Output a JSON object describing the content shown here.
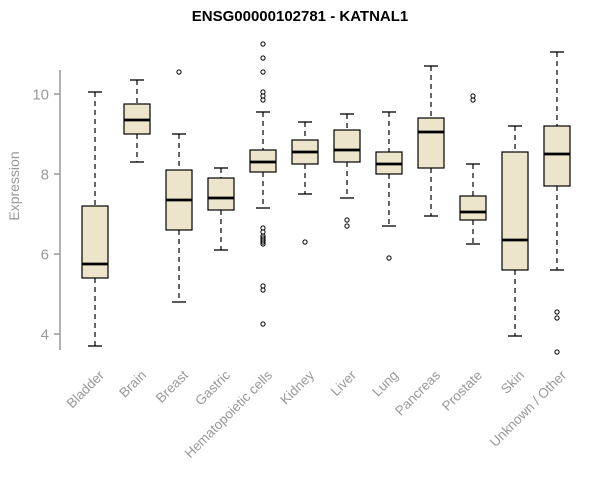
{
  "chart_data": {
    "type": "boxplot",
    "title": "ENSG00000102781 - KATNAL1",
    "ylabel": "Expression",
    "ylim": [
      3.4,
      11.4
    ],
    "yticks": [
      4,
      6,
      8,
      10
    ],
    "grid": false,
    "legend": "none",
    "categories": [
      "Bladder",
      "Brain",
      "Breast",
      "Gastric",
      "Hematopoietic cells",
      "Kidney",
      "Liver",
      "Lung",
      "Pancreas",
      "Prostate",
      "Skin",
      "Unknown / Other"
    ],
    "series": [
      {
        "name": "Bladder",
        "low": 3.7,
        "q1": 5.4,
        "median": 5.75,
        "q3": 7.2,
        "high": 10.05,
        "outliers": []
      },
      {
        "name": "Brain",
        "low": 8.3,
        "q1": 9.0,
        "median": 9.35,
        "q3": 9.75,
        "high": 10.35,
        "outliers": []
      },
      {
        "name": "Breast",
        "low": 4.8,
        "q1": 6.6,
        "median": 7.35,
        "q3": 8.1,
        "high": 9.0,
        "outliers": [
          10.55
        ]
      },
      {
        "name": "Gastric",
        "low": 6.1,
        "q1": 7.1,
        "median": 7.4,
        "q3": 7.9,
        "high": 8.15,
        "outliers": []
      },
      {
        "name": "Hematopoietic cells",
        "low": 7.15,
        "q1": 8.05,
        "median": 8.3,
        "q3": 8.6,
        "high": 9.55,
        "outliers": [
          11.25,
          10.9,
          10.55,
          10.05,
          9.95,
          9.85,
          6.65,
          6.55,
          6.45,
          6.4,
          6.35,
          6.3,
          6.25,
          5.2,
          5.1,
          4.25
        ]
      },
      {
        "name": "Kidney",
        "low": 7.5,
        "q1": 8.25,
        "median": 8.55,
        "q3": 8.85,
        "high": 9.3,
        "outliers": [
          6.3
        ]
      },
      {
        "name": "Liver",
        "low": 7.4,
        "q1": 8.3,
        "median": 8.6,
        "q3": 9.1,
        "high": 9.5,
        "outliers": [
          6.85,
          6.7
        ]
      },
      {
        "name": "Lung",
        "low": 6.7,
        "q1": 8.0,
        "median": 8.25,
        "q3": 8.55,
        "high": 9.55,
        "outliers": [
          5.9
        ]
      },
      {
        "name": "Pancreas",
        "low": 6.95,
        "q1": 8.15,
        "median": 9.05,
        "q3": 9.4,
        "high": 10.7,
        "outliers": []
      },
      {
        "name": "Prostate",
        "low": 6.25,
        "q1": 6.85,
        "median": 7.05,
        "q3": 7.45,
        "high": 8.25,
        "outliers": [
          9.95,
          9.85
        ]
      },
      {
        "name": "Skin",
        "low": 3.95,
        "q1": 5.6,
        "median": 6.35,
        "q3": 8.55,
        "high": 9.2,
        "outliers": []
      },
      {
        "name": "Unknown / Other",
        "low": 5.6,
        "q1": 7.7,
        "median": 8.5,
        "q3": 9.2,
        "high": 11.05,
        "outliers": [
          4.55,
          4.4,
          3.55
        ]
      }
    ]
  },
  "colors": {
    "box_fill": "#EDE5CB",
    "box_stroke": "#000000",
    "median": "#000000",
    "axis": "#999999",
    "title": "#000000",
    "background": "#FFFFFF"
  }
}
